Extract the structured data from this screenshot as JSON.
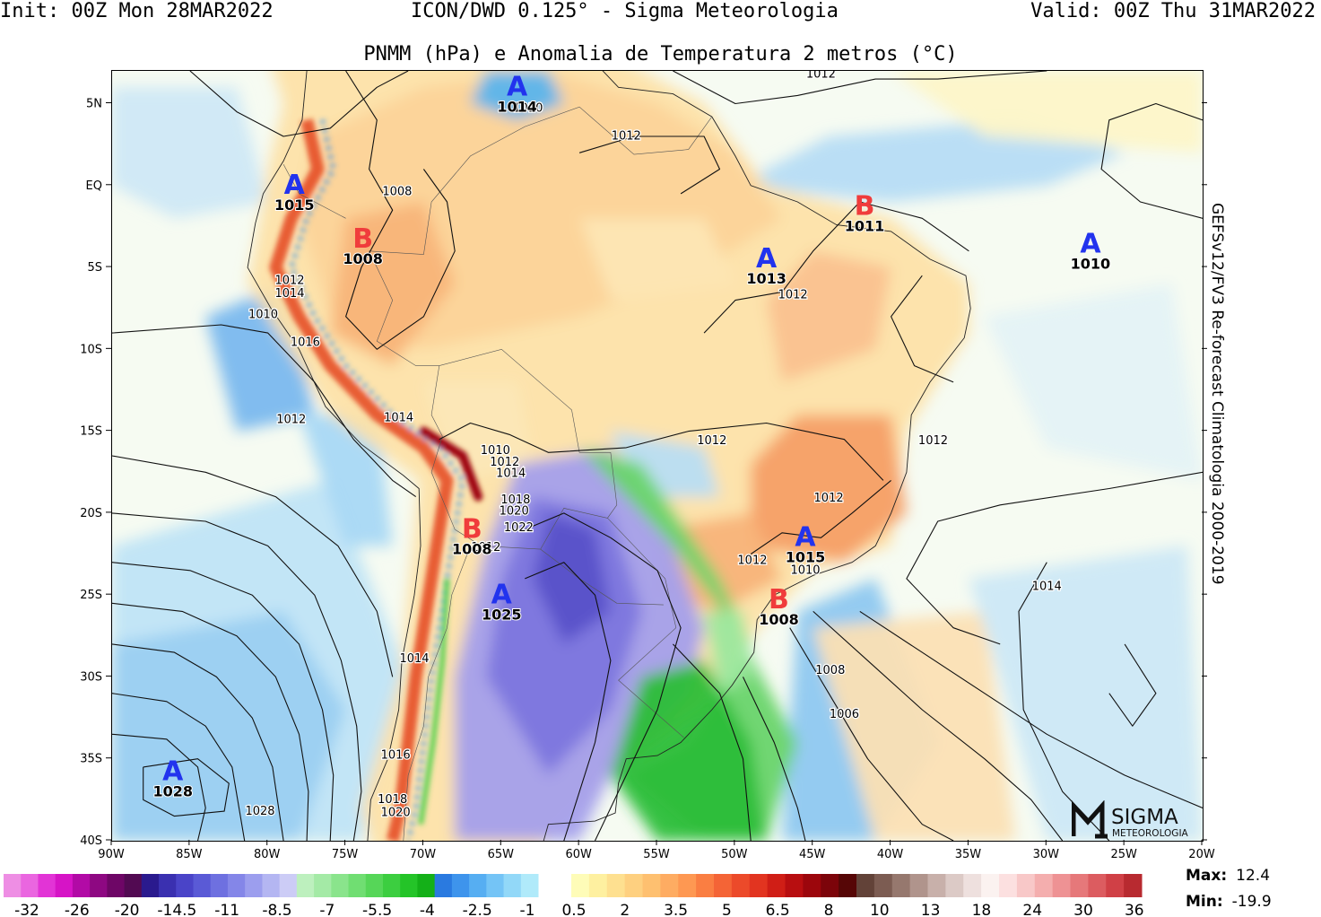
{
  "header": {
    "init": "Init: 00Z Mon 28MAR2022",
    "model": "ICON/DWD 0.125° - Sigma Meteorologia",
    "valid": "Valid: 00Z Thu 31MAR2022",
    "subtitle": "PNMM (hPa) e Anomalia de Temperatura 2 metros (°C)"
  },
  "side_label": "GEFSv12/FV3 Re-forecast Climatologia 2000-2019",
  "stats": {
    "max_label": "Max:",
    "max_value": "12.4",
    "min_label": "Min:",
    "min_value": "-19.9"
  },
  "logo": {
    "line1": "SIGMA",
    "line2": "METEOROLOGIA"
  },
  "map": {
    "lon_ticks": [
      "90W",
      "85W",
      "80W",
      "75W",
      "70W",
      "65W",
      "60W",
      "55W",
      "50W",
      "45W",
      "40W",
      "35W",
      "30W",
      "25W",
      "20W"
    ],
    "lat_ticks": [
      "5N",
      "EQ",
      "5S",
      "10S",
      "15S",
      "20S",
      "25S",
      "30S",
      "35S",
      "40S"
    ],
    "pressure_centers": [
      {
        "type": "A",
        "value": "1014",
        "lon": -64.0,
        "lat": 5.5
      },
      {
        "type": "A",
        "value": "1015",
        "lon": -78.3,
        "lat": -0.5
      },
      {
        "type": "B",
        "value": "1008",
        "lon": -73.9,
        "lat": -3.8
      },
      {
        "type": "B",
        "value": "1011",
        "lon": -41.7,
        "lat": -1.8
      },
      {
        "type": "A",
        "value": "1010",
        "lon": -27.2,
        "lat": -4.1
      },
      {
        "type": "A",
        "value": "1013",
        "lon": -48.0,
        "lat": -5.0
      },
      {
        "type": "B",
        "value": "1008",
        "lon": -66.9,
        "lat": -21.5
      },
      {
        "type": "A",
        "value": "1015",
        "lon": -45.5,
        "lat": -22.0
      },
      {
        "type": "A",
        "value": "1025",
        "lon": -65.0,
        "lat": -25.5
      },
      {
        "type": "B",
        "value": "1008",
        "lon": -47.2,
        "lat": -25.8
      },
      {
        "type": "A",
        "value": "1028",
        "lon": -86.1,
        "lat": -36.3
      }
    ],
    "isobar_labels": [
      {
        "text": "1012",
        "lon": -44.5,
        "lat": 6.6
      },
      {
        "text": "1010",
        "lon": -63.3,
        "lat": 4.5
      },
      {
        "text": "1012",
        "lon": -57.0,
        "lat": 2.8
      },
      {
        "text": "1008",
        "lon": -71.7,
        "lat": -0.6
      },
      {
        "text": "1012",
        "lon": -78.6,
        "lat": -6.0
      },
      {
        "text": "1014",
        "lon": -78.6,
        "lat": -6.8
      },
      {
        "text": "1010",
        "lon": -80.3,
        "lat": -8.1
      },
      {
        "text": "1016",
        "lon": -77.6,
        "lat": -9.8
      },
      {
        "text": "1012",
        "lon": -78.5,
        "lat": -14.5
      },
      {
        "text": "1014",
        "lon": -71.6,
        "lat": -14.4
      },
      {
        "text": "1012",
        "lon": -46.3,
        "lat": -6.9
      },
      {
        "text": "1010",
        "lon": -65.4,
        "lat": -16.4
      },
      {
        "text": "1012",
        "lon": -64.8,
        "lat": -17.1
      },
      {
        "text": "1014",
        "lon": -64.4,
        "lat": -17.8
      },
      {
        "text": "1018",
        "lon": -64.1,
        "lat": -19.4
      },
      {
        "text": "1020",
        "lon": -64.2,
        "lat": -20.1
      },
      {
        "text": "1022",
        "lon": -63.9,
        "lat": -21.1
      },
      {
        "text": "1012",
        "lon": -66.0,
        "lat": -22.3
      },
      {
        "text": "1012",
        "lon": -51.5,
        "lat": -15.8
      },
      {
        "text": "1012",
        "lon": -44.0,
        "lat": -19.3
      },
      {
        "text": "1012",
        "lon": -48.9,
        "lat": -23.1
      },
      {
        "text": "1010",
        "lon": -45.5,
        "lat": -23.7
      },
      {
        "text": "1012",
        "lon": -37.3,
        "lat": -15.8
      },
      {
        "text": "1014",
        "lon": -30.0,
        "lat": -24.7
      },
      {
        "text": "1008",
        "lon": -43.9,
        "lat": -29.8
      },
      {
        "text": "1006",
        "lon": -43.0,
        "lat": -32.5
      },
      {
        "text": "1014",
        "lon": -70.6,
        "lat": -29.1
      },
      {
        "text": "1016",
        "lon": -71.8,
        "lat": -35.0
      },
      {
        "text": "1018",
        "lon": -72.0,
        "lat": -37.7
      },
      {
        "text": "1020",
        "lon": -71.8,
        "lat": -38.5
      },
      {
        "text": "1028",
        "lon": -80.5,
        "lat": -38.4
      }
    ]
  },
  "colorbar": {
    "cold_colors": [
      "#ee8ee4",
      "#ea66e0",
      "#e234d6",
      "#d614c6",
      "#b20aa6",
      "#8e0882",
      "#6e0666",
      "#520a52",
      "#2a1a8e",
      "#3a30b0",
      "#4a44c8",
      "#5a5ad6",
      "#6e70e0",
      "#8486e8",
      "#9c9eee",
      "#b4b6f2",
      "#ccccf6",
      "#bdf0be",
      "#a4eaa6",
      "#8ae48c",
      "#70de72",
      "#56d658",
      "#3cce40",
      "#24c428",
      "#14b018",
      "#2a7ae0",
      "#3e94ec",
      "#56aef2",
      "#74c4f6",
      "#92d8f8",
      "#b0eafa"
    ],
    "warm_colors": [
      "#fefcb8",
      "#fef0a0",
      "#fee090",
      "#fed080",
      "#fec070",
      "#feac62",
      "#fe9852",
      "#fa7e42",
      "#f46436",
      "#ec4a2a",
      "#e23420",
      "#d01e16",
      "#b80e10",
      "#9c060c",
      "#7c040a",
      "#560606",
      "#624238",
      "#7c5c52",
      "#96786e",
      "#b0948c",
      "#c8b0aa",
      "#dccac6",
      "#eee0de",
      "#fbf2f0",
      "#fce0e0",
      "#f8c8c8",
      "#f4aeae",
      "#ee9294",
      "#e6787a",
      "#dc5c60",
      "#d04046",
      "#b82a30"
    ],
    "cold_labels": [
      "-32",
      "-26",
      "-20",
      "-14.5",
      "-11",
      "-8.5",
      "-7",
      "-5.5",
      "-4",
      "-2.5",
      "-1"
    ],
    "warm_labels": [
      "0.5",
      "2",
      "3.5",
      "5",
      "6.5",
      "8",
      "10",
      "13",
      "18",
      "24",
      "30",
      "36"
    ]
  }
}
